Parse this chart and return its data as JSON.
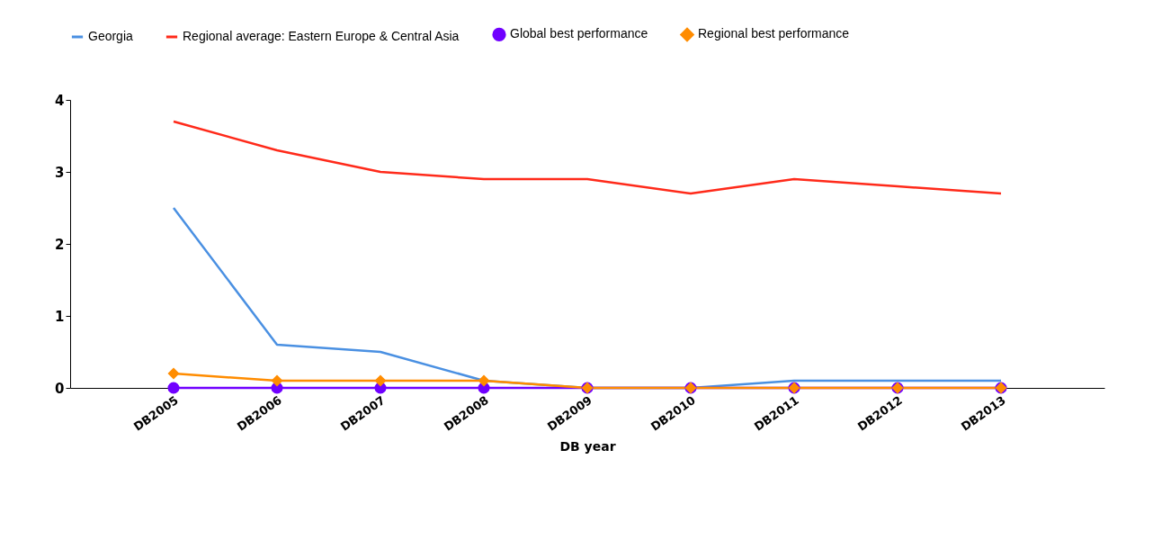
{
  "chart_data": {
    "type": "line",
    "xlabel": "DB year",
    "categories": [
      "DB2005",
      "DB2006",
      "DB2007",
      "DB2008",
      "DB2009",
      "DB2010",
      "DB2011",
      "DB2012",
      "DB2013"
    ],
    "series": [
      {
        "name": "Georgia",
        "color": "#4a90e2",
        "marker": "none",
        "values": [
          2.5,
          0.6,
          0.5,
          0.1,
          0,
          0,
          0.1,
          0.1,
          0.1
        ]
      },
      {
        "name": "Regional average: Eastern Europe & Central Asia",
        "color": "#ff2a1a",
        "marker": "none",
        "values": [
          3.7,
          3.3,
          3.0,
          2.9,
          2.9,
          2.7,
          2.9,
          2.8,
          2.7
        ]
      },
      {
        "name": "Global best performance",
        "color": "#7000ff",
        "marker": "circle",
        "values": [
          0,
          0,
          0,
          0,
          0,
          0,
          0,
          0,
          0
        ]
      },
      {
        "name": "Regional best performance",
        "color": "#ff8c00",
        "marker": "diamond",
        "values": [
          0.2,
          0.1,
          0.1,
          0.1,
          0,
          0,
          0,
          0,
          0
        ]
      }
    ],
    "ylim": [
      0,
      4
    ],
    "yticks": [
      0,
      1,
      2,
      3,
      4
    ],
    "grid": false,
    "legend": "top"
  }
}
